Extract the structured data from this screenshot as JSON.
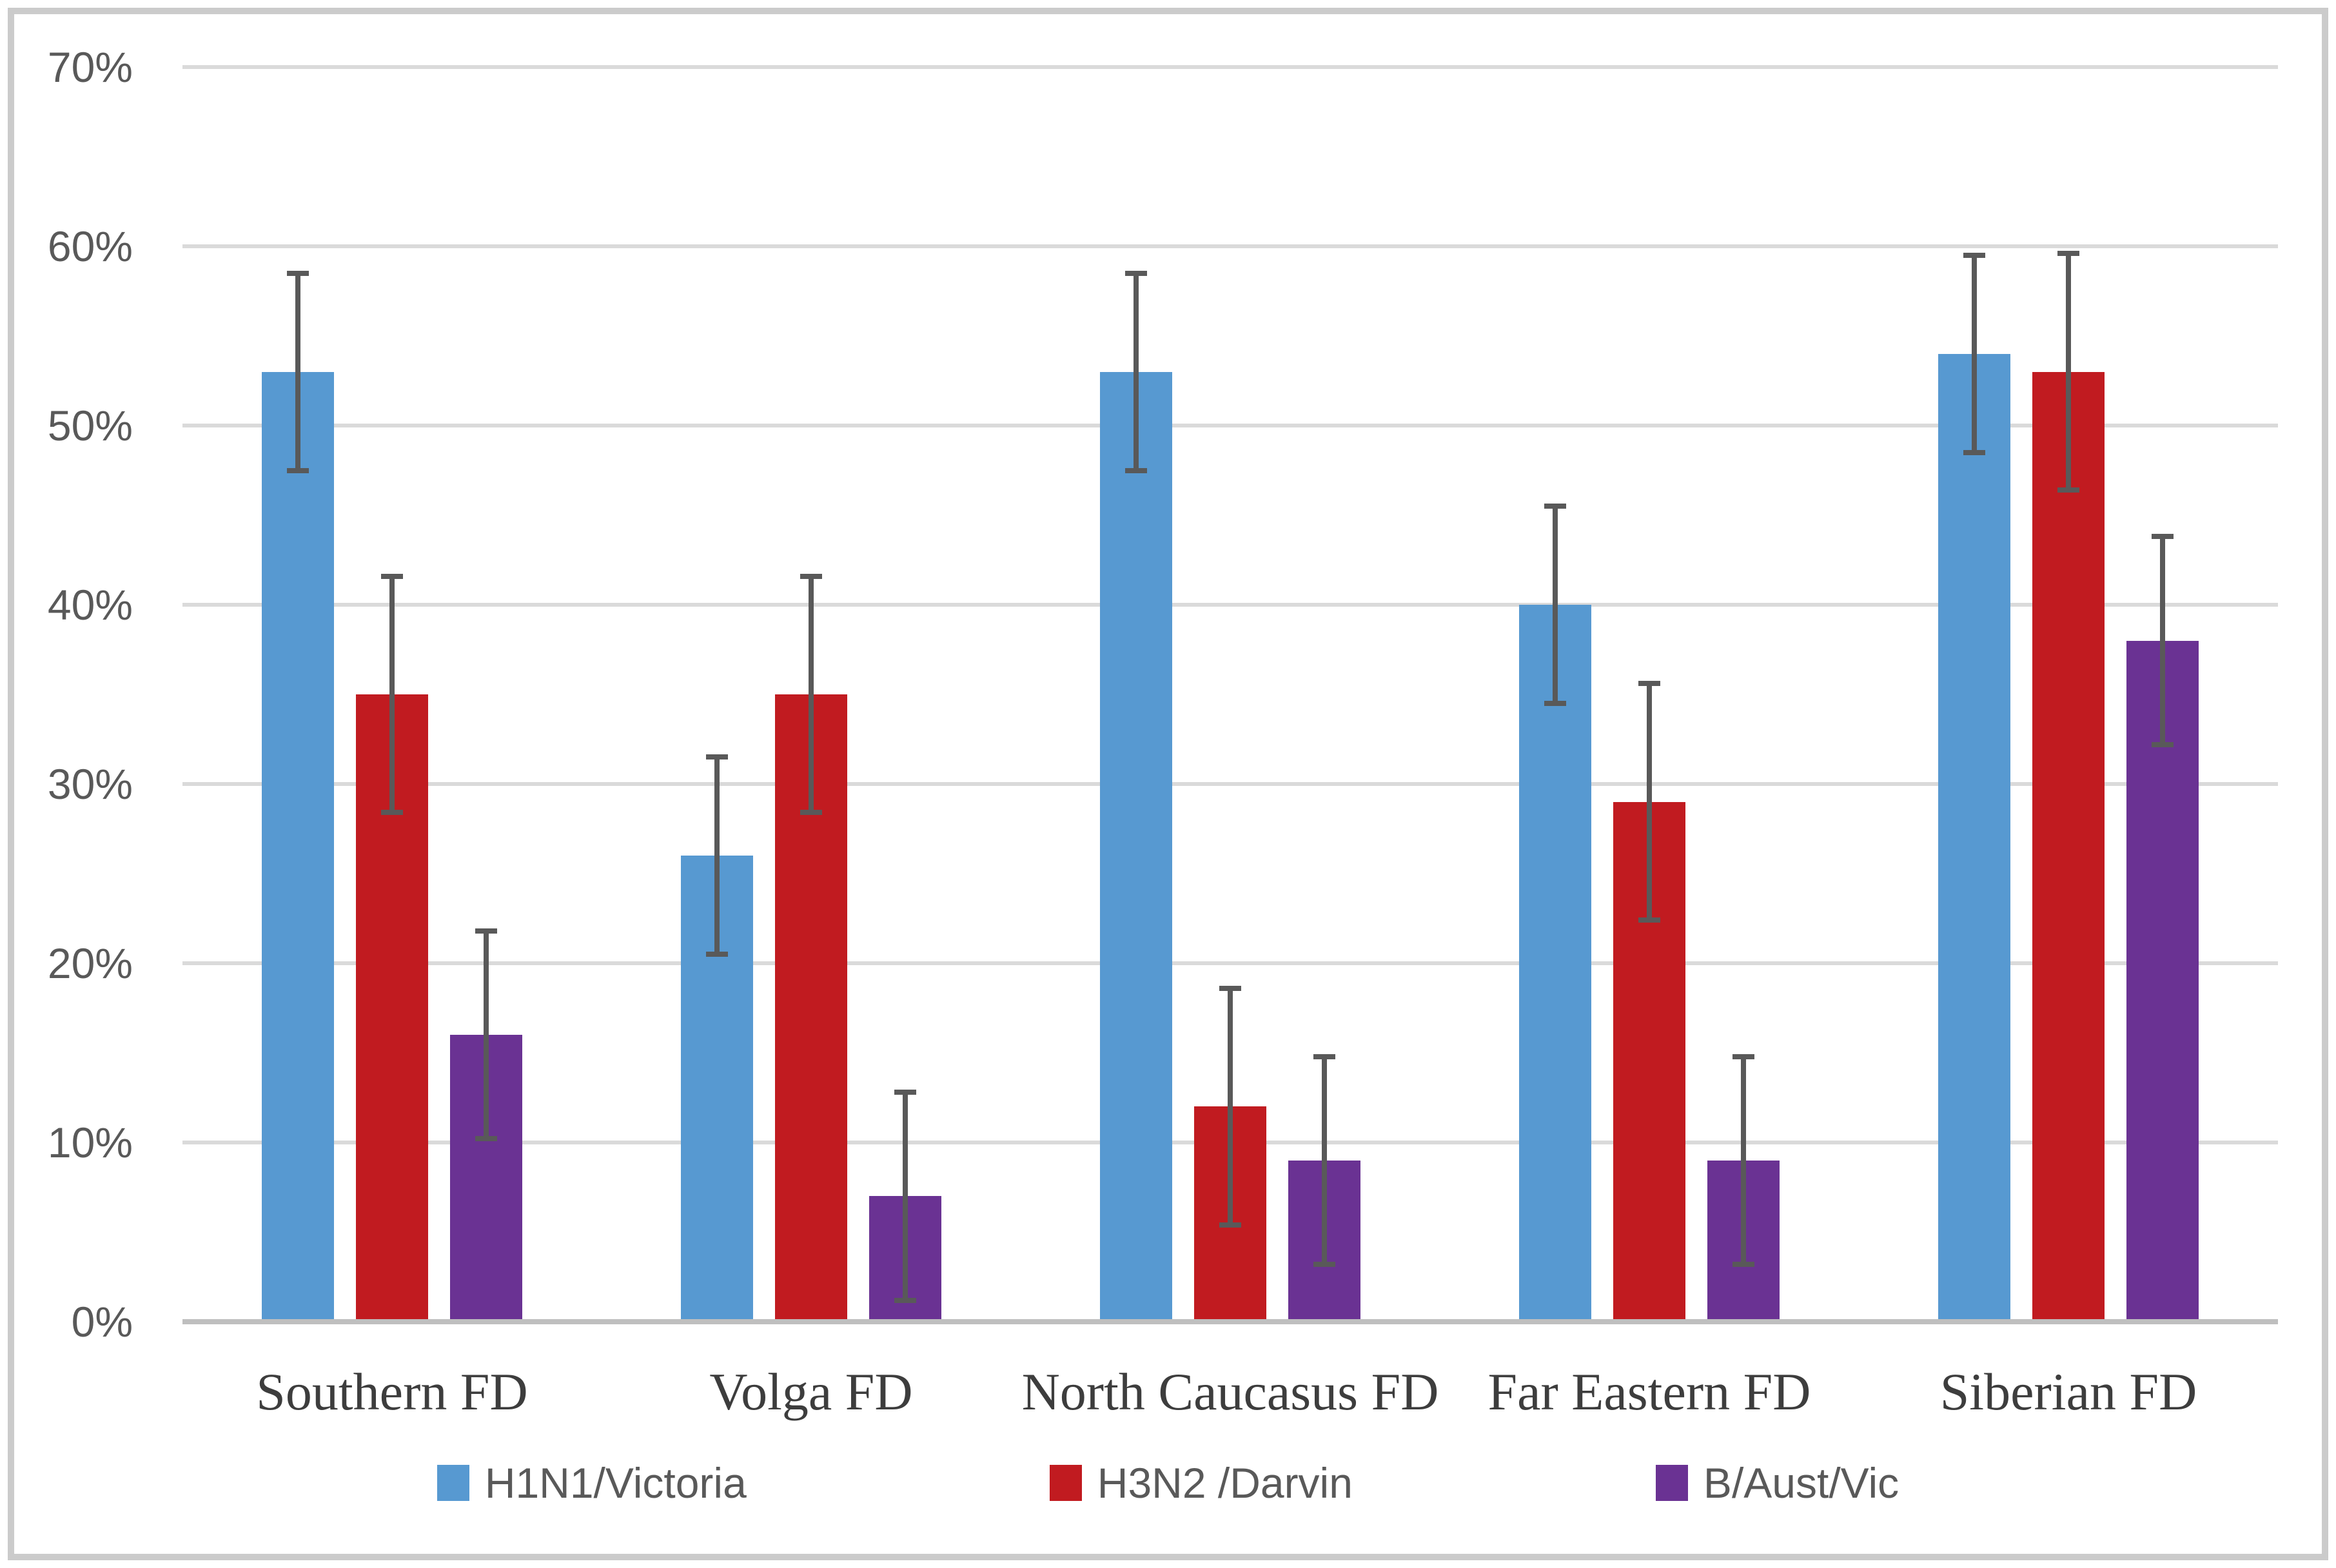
{
  "chart_data": {
    "type": "bar",
    "title": "",
    "xlabel": "",
    "ylabel": "",
    "categories": [
      "Southern FD",
      "Volga FD",
      "North Caucasus FD",
      "Far Eastern FD",
      "Siberian FD"
    ],
    "series": [
      {
        "name": "H1N1/Victoria",
        "color": "#5799D1",
        "values": [
          53,
          26,
          53,
          40,
          54
        ],
        "error": 5.5
      },
      {
        "name": "H3N2 /Darvin",
        "color": "#C11B20",
        "values": [
          35,
          35,
          12,
          29,
          53
        ],
        "error": 6.6
      },
      {
        "name": "B/Aust/Vic",
        "color": "#6A3293",
        "values": [
          16,
          7,
          9,
          9,
          38
        ],
        "error": 5.8
      }
    ],
    "ylim": [
      0,
      70
    ],
    "ytick_step": 10,
    "y_ticks": [
      "0%",
      "10%",
      "20%",
      "30%",
      "40%",
      "50%",
      "60%",
      "70%"
    ],
    "grid": true,
    "legend_position": "bottom",
    "error_bars": true,
    "colors": {
      "gridline": "#DADADA",
      "axis_line": "#BFBFBF",
      "error_bar": "#595959",
      "tick_text": "#595959",
      "category_text": "#3D3D3D",
      "frame_border": "#CBCBCB"
    }
  }
}
